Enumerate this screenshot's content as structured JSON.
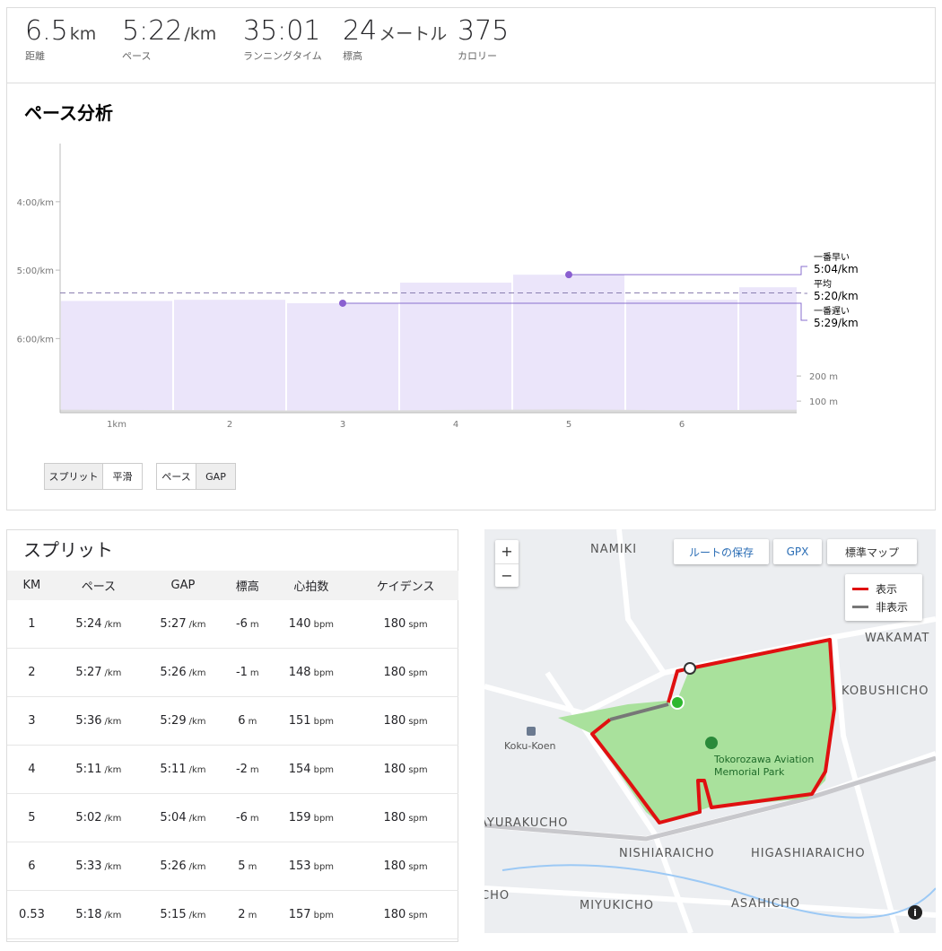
{
  "header": {
    "stats": [
      {
        "value": "6.5",
        "unit": "km",
        "label": "距離"
      },
      {
        "value": "5:22",
        "unit": "/km",
        "label": "ペース"
      },
      {
        "value": "35:01",
        "label": "ランニングタイム"
      },
      {
        "value": "24",
        "unit": "メートル",
        "label": "標高"
      },
      {
        "value": "375",
        "label": "カロリー"
      }
    ]
  },
  "chart_data": {
    "type": "bar",
    "title": "ペース分析",
    "categories": [
      "1km",
      "2",
      "3",
      "4",
      "5",
      "6",
      null
    ],
    "series": [
      {
        "color": "#ebe5fa",
        "values": [
          327,
          326,
          329,
          311,
          304,
          326,
          315
        ]
      },
      {
        "color": "#dcdcdc",
        "axis": "y2",
        "values": [
          66,
          64,
          62,
          65,
          67,
          64,
          66
        ]
      }
    ],
    "ylim": [
      425,
      189
    ],
    "yticks": [
      {
        "value": 240,
        "label": "4:00/km"
      },
      {
        "value": 300,
        "label": "5:00/km"
      },
      {
        "value": 360,
        "label": "6:00/km"
      }
    ],
    "y2lim": [
      54,
      1125
    ],
    "y2ticks": [
      {
        "value": 200,
        "label": "200 m"
      },
      {
        "value": 100,
        "label": "100 m"
      }
    ],
    "annotations": [
      {
        "name": "一番早い",
        "value": 304,
        "label": "5:04/km"
      },
      {
        "name": "平均",
        "value": 320,
        "label": "5:20/km",
        "dashed": true
      },
      {
        "name": "一番遅い",
        "value": 329,
        "label": "5:29/km"
      }
    ],
    "controls": [
      {
        "options": [
          "スプリット",
          "平滑"
        ],
        "selected": 0
      },
      {
        "options": [
          "ペース",
          "GAP"
        ],
        "selected": 1
      }
    ]
  },
  "table": {
    "title": "スプリット",
    "headers": [
      "KM",
      "ペース",
      "GAP",
      "標高",
      "心拍数",
      "ケイデンス"
    ],
    "column_units": [
      "/km",
      "/km",
      "m",
      "bpm",
      "spm"
    ],
    "rows": [
      [
        "1",
        "5:24",
        "5:27",
        "-6",
        "140",
        "180"
      ],
      [
        "2",
        "5:27",
        "5:26",
        "-1",
        "148",
        "180"
      ],
      [
        "3",
        "5:36",
        "5:29",
        "6",
        "151",
        "180"
      ],
      [
        "4",
        "5:11",
        "5:11",
        "-2",
        "154",
        "180"
      ],
      [
        "5",
        "5:02",
        "5:04",
        "-6",
        "159",
        "180"
      ],
      [
        "6",
        "5:33",
        "5:26",
        "5",
        "153",
        "180"
      ],
      [
        "0.53",
        "5:18",
        "5:15",
        "2",
        "157",
        "180"
      ]
    ]
  },
  "map": {
    "zoom_in": "+",
    "zoom_out": "−",
    "buttons": [
      "ルートの保存",
      "GPX",
      "標準マップ"
    ],
    "legend": [
      {
        "label": "表示",
        "color": "#e01010"
      },
      {
        "label": "非表示",
        "color": "#777777"
      }
    ],
    "places": [
      "NAMIKI",
      "WAKAMAT",
      "KOBUSHICHO",
      "Koku-Koen",
      "Tokorozawa Aviation",
      "Memorial Park",
      "AYURAKUCHO",
      "NISHIARAICHO",
      "HIGASHIARAICHO",
      "CHO",
      "MIYUKICHO",
      "ASAHICHO"
    ]
  }
}
